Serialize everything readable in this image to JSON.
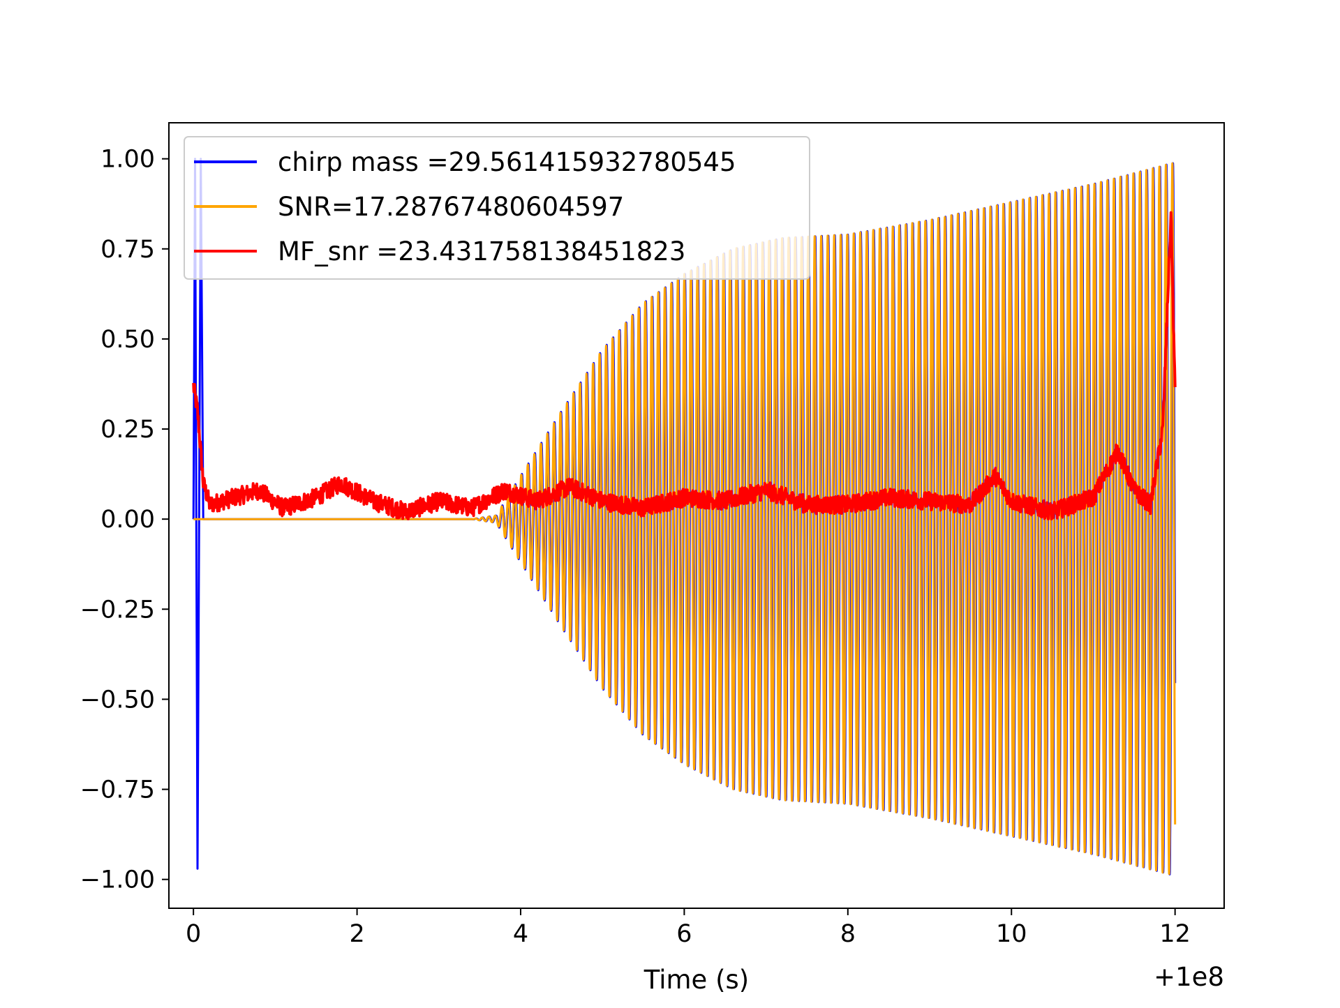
{
  "chart_data": {
    "type": "line",
    "title": "",
    "xlabel": "Time (s)",
    "ylabel": "",
    "x_offset_label": "+1e8",
    "xlim": [
      -0.3,
      12.6
    ],
    "ylim": [
      -1.08,
      1.1
    ],
    "xticks": [
      0,
      2,
      4,
      6,
      8,
      10,
      12
    ],
    "xtick_labels": [
      "0",
      "2",
      "4",
      "6",
      "8",
      "10",
      "12"
    ],
    "yticks": [
      1.0,
      0.75,
      0.5,
      0.25,
      0.0,
      -0.25,
      -0.5,
      -0.75,
      -1.0
    ],
    "ytick_labels": [
      "1.00",
      "0.75",
      "0.50",
      "0.25",
      "0.00",
      "−0.25",
      "−0.50",
      "−0.75",
      "−1.00"
    ],
    "grid": false,
    "legend_position": "upper-left",
    "series": [
      {
        "name": "chirp mass =29.561415932780545",
        "color": "#0000ff",
        "kind": "chirp-waveform",
        "t_start": 0.0,
        "t_end": 12.0,
        "initial_spike": [
          [
            0.0,
            0.0
          ],
          [
            0.02,
            1.0
          ],
          [
            0.05,
            -0.97
          ],
          [
            0.09,
            1.0
          ],
          [
            0.12,
            0.0
          ]
        ],
        "envelope": [
          [
            0.0,
            0.0
          ],
          [
            3.4,
            0.0
          ],
          [
            3.7,
            0.01
          ],
          [
            4.0,
            0.12
          ],
          [
            4.5,
            0.3
          ],
          [
            5.0,
            0.47
          ],
          [
            5.5,
            0.6
          ],
          [
            6.0,
            0.68
          ],
          [
            6.6,
            0.75
          ],
          [
            7.2,
            0.78
          ],
          [
            8.0,
            0.79
          ],
          [
            9.0,
            0.83
          ],
          [
            10.0,
            0.88
          ],
          [
            11.0,
            0.93
          ],
          [
            12.0,
            0.99
          ]
        ],
        "cycles": 150
      },
      {
        "name": "SNR=17.28767480604597",
        "color": "#ffa500",
        "kind": "chirp-waveform",
        "t_start": 0.0,
        "t_end": 12.0,
        "envelope": [
          [
            0.0,
            0.0
          ],
          [
            3.4,
            0.0
          ],
          [
            3.7,
            0.01
          ],
          [
            4.0,
            0.12
          ],
          [
            4.5,
            0.3
          ],
          [
            5.0,
            0.47
          ],
          [
            5.5,
            0.6
          ],
          [
            6.0,
            0.68
          ],
          [
            6.6,
            0.75
          ],
          [
            7.2,
            0.78
          ],
          [
            8.0,
            0.79
          ],
          [
            9.0,
            0.83
          ],
          [
            10.0,
            0.88
          ],
          [
            11.0,
            0.93
          ],
          [
            12.0,
            0.99
          ]
        ],
        "cycles": 150
      },
      {
        "name": "MF_snr =23.431758138451823",
        "color": "#ff0000",
        "kind": "noisy-trace",
        "t_start": 0.0,
        "t_end": 12.0,
        "trend": [
          [
            0.0,
            0.37
          ],
          [
            0.05,
            0.3
          ],
          [
            0.12,
            0.1
          ],
          [
            0.2,
            0.04
          ],
          [
            0.5,
            0.06
          ],
          [
            0.8,
            0.08
          ],
          [
            1.1,
            0.03
          ],
          [
            1.5,
            0.06
          ],
          [
            1.8,
            0.1
          ],
          [
            2.2,
            0.05
          ],
          [
            2.6,
            0.02
          ],
          [
            3.0,
            0.05
          ],
          [
            3.4,
            0.03
          ],
          [
            3.8,
            0.08
          ],
          [
            4.2,
            0.05
          ],
          [
            4.6,
            0.09
          ],
          [
            5.0,
            0.05
          ],
          [
            5.5,
            0.03
          ],
          [
            6.0,
            0.06
          ],
          [
            6.5,
            0.05
          ],
          [
            7.0,
            0.08
          ],
          [
            7.5,
            0.04
          ],
          [
            8.0,
            0.04
          ],
          [
            8.5,
            0.06
          ],
          [
            9.0,
            0.05
          ],
          [
            9.5,
            0.04
          ],
          [
            9.8,
            0.12
          ],
          [
            10.0,
            0.05
          ],
          [
            10.5,
            0.02
          ],
          [
            11.0,
            0.06
          ],
          [
            11.3,
            0.19
          ],
          [
            11.5,
            0.08
          ],
          [
            11.7,
            0.04
          ],
          [
            11.85,
            0.25
          ],
          [
            11.95,
            0.85
          ],
          [
            12.0,
            0.35
          ]
        ],
        "noise_amplitude": 0.025
      }
    ]
  }
}
